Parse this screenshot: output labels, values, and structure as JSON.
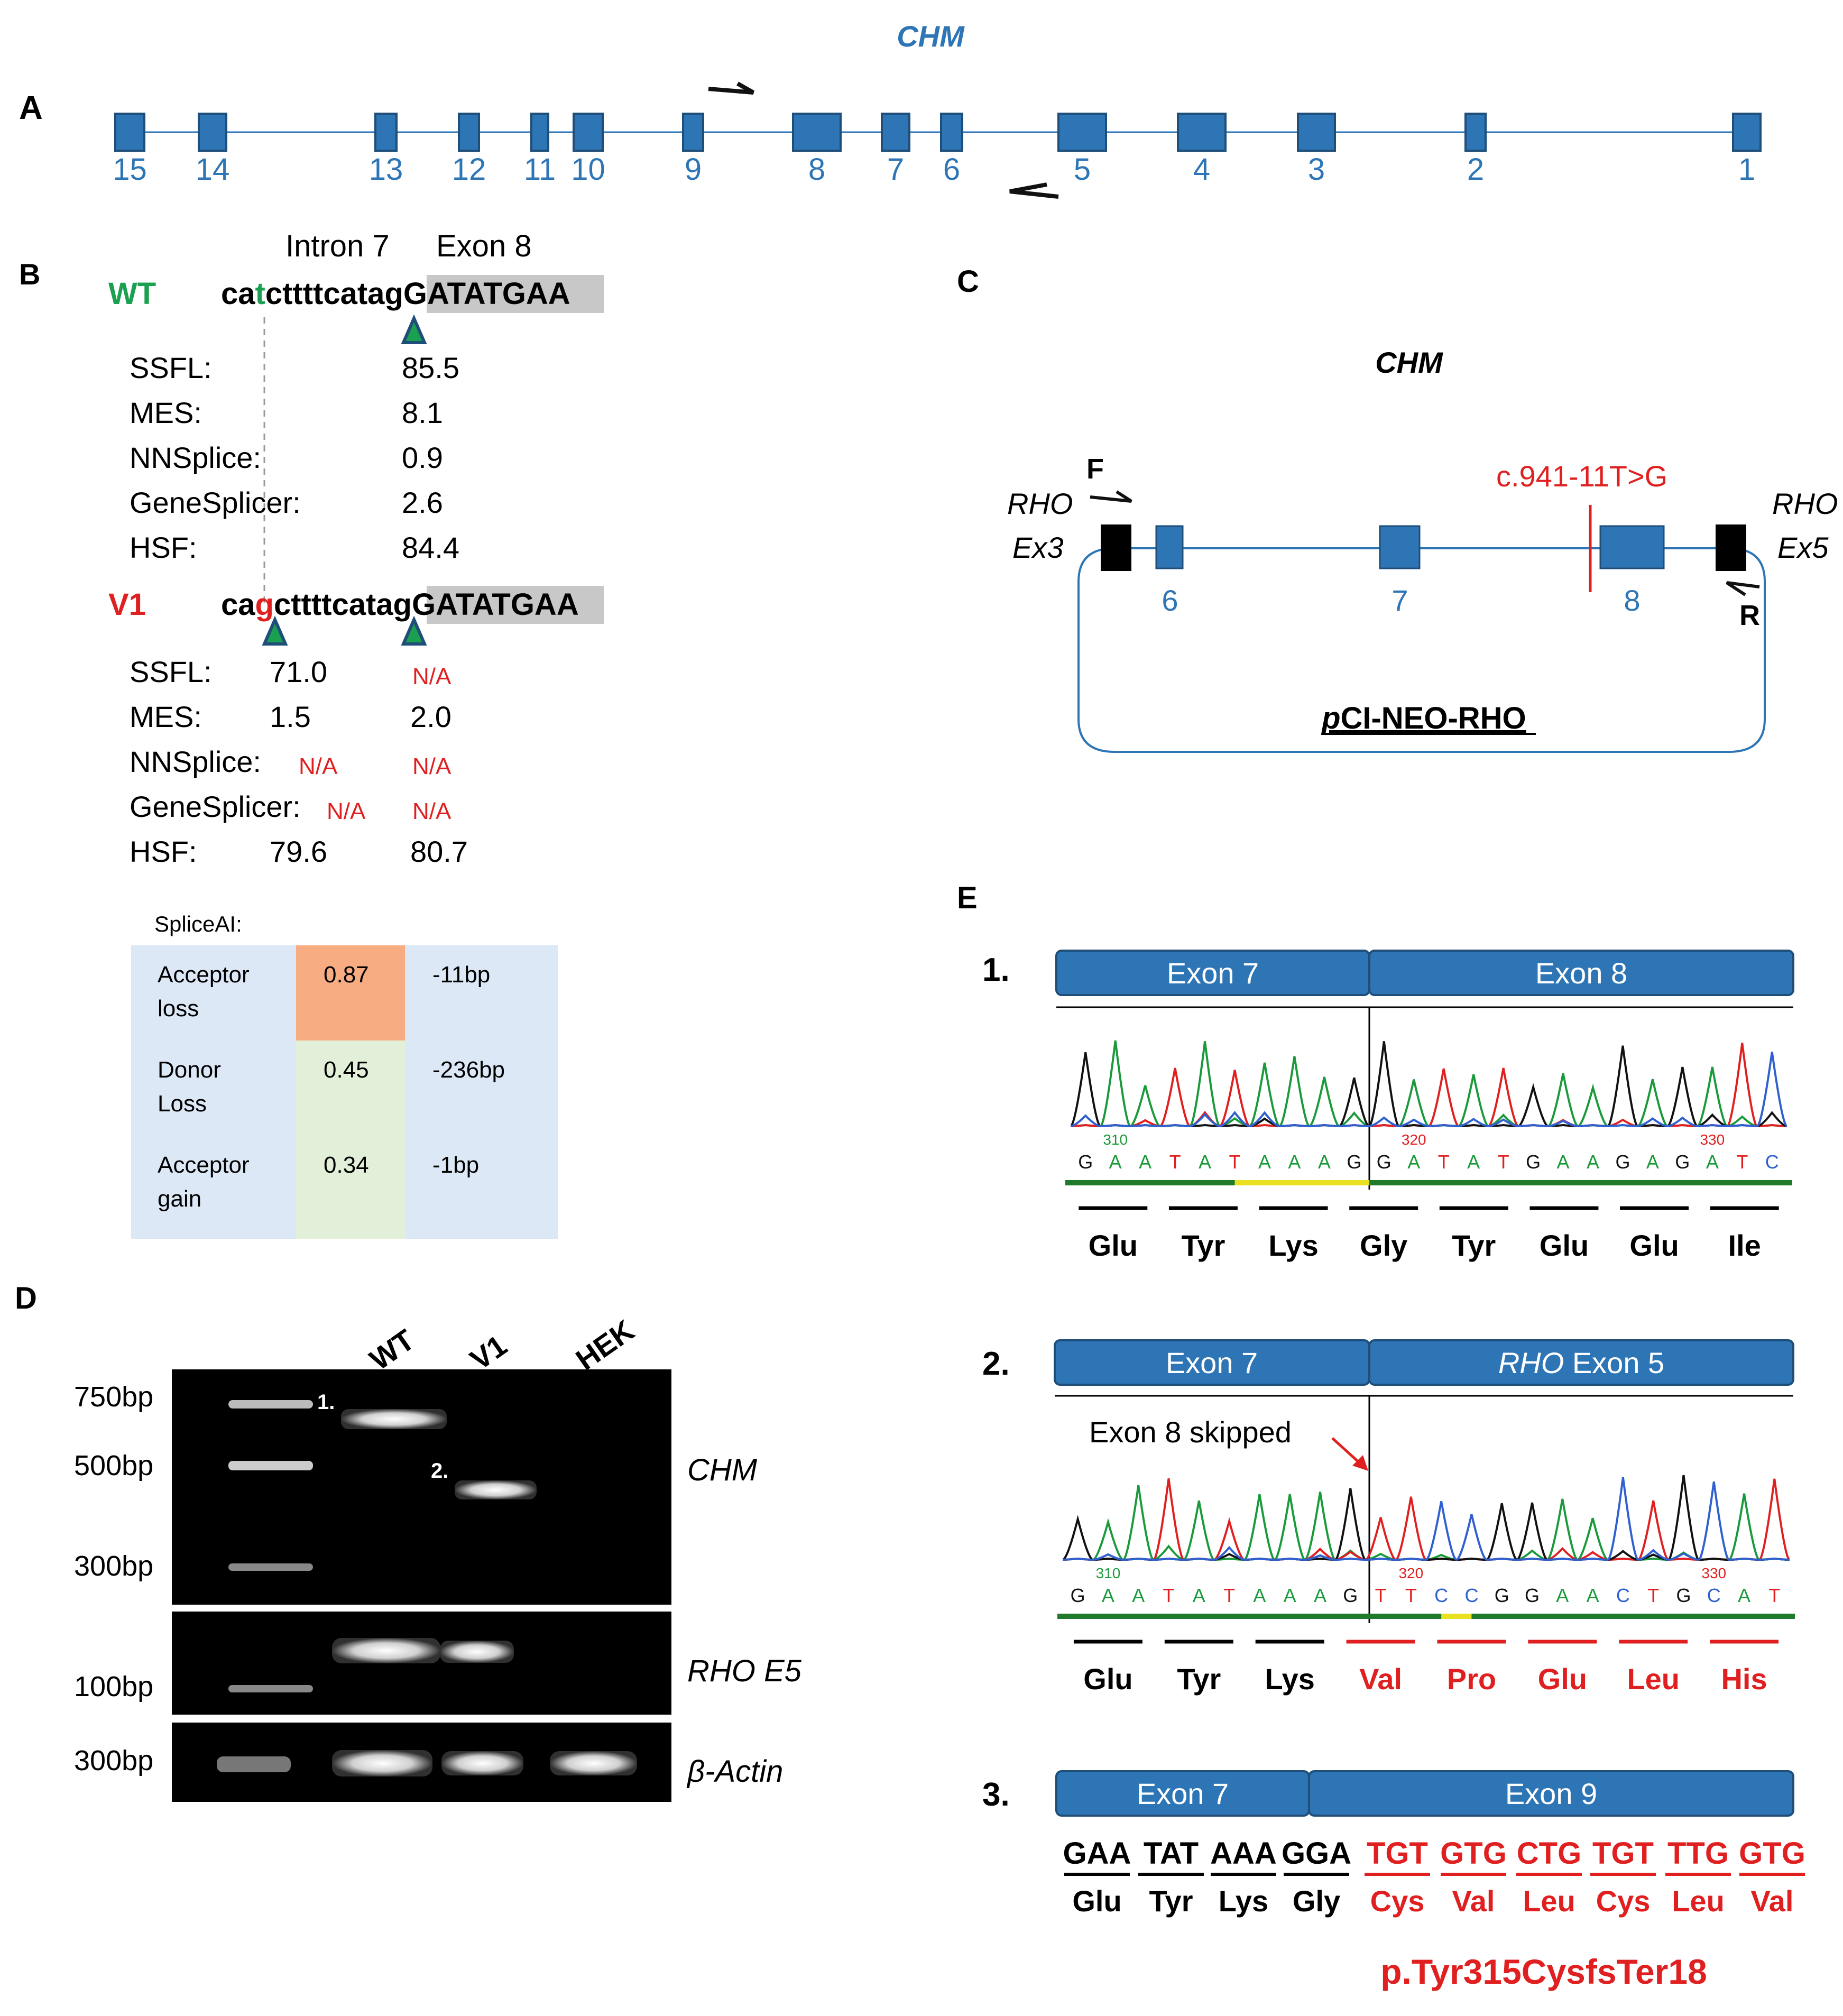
{
  "panels": {
    "A": "A",
    "B": "B",
    "C": "C",
    "D": "D",
    "E": "E"
  },
  "panelA": {
    "gene": "CHM",
    "exons": [
      "15",
      "14",
      "13",
      "12",
      "11",
      "10",
      "9",
      "8",
      "7",
      "6",
      "5",
      "4",
      "3",
      "2",
      "1"
    ]
  },
  "panelB": {
    "intron_label": "Intron 7",
    "exon_label": "Exon 8",
    "wt_label": "WT",
    "wt_seq_pre": "ca",
    "wt_seq_mut": "t",
    "wt_seq_post": "cttttcatag",
    "exon_seq": "GATATGAA",
    "v1_label": "V1",
    "v1_seq_pre": "ca",
    "v1_seq_mut": "g",
    "v1_seq_post": "cttttcatag",
    "wt_scores": [
      {
        "name": "SSFL:",
        "value": "85.5"
      },
      {
        "name": "MES:",
        "value": "8.1"
      },
      {
        "name": "NNSplice:",
        "value": "0.9"
      },
      {
        "name": "GeneSplicer:",
        "value": "2.6"
      },
      {
        "name": "HSF:",
        "value": "84.4"
      }
    ],
    "v1_scores": [
      {
        "name": "SSFL:",
        "v1": "71.0",
        "v2": "N/A"
      },
      {
        "name": "MES:",
        "v1": "1.5",
        "v2": "2.0"
      },
      {
        "name": "NNSplice:",
        "v1": "N/A",
        "v2": "N/A"
      },
      {
        "name": "GeneSplicer:",
        "v1": "N/A",
        "v2": "N/A"
      },
      {
        "name": "HSF:",
        "v1": "79.6",
        "v2": "80.7"
      }
    ],
    "spliceai_title": "SpliceAI:",
    "spliceai": [
      {
        "line1": "Acceptor",
        "line2": "loss",
        "score": "0.87",
        "pos": "-11bp"
      },
      {
        "line1": "Donor",
        "line2": "Loss",
        "score": "0.45",
        "pos": "-236bp"
      },
      {
        "line1": "Acceptor",
        "line2": "gain",
        "score": "0.34",
        "pos": "-1bp"
      }
    ]
  },
  "panelC": {
    "gene": "CHM",
    "mutation": "c.941-11T>G",
    "rho_left_1": "RHO",
    "rho_left_2": "Ex3",
    "rho_right_1": "RHO",
    "rho_right_2": "Ex5",
    "primer_f": "F",
    "primer_r": "R",
    "exons": [
      "6",
      "7",
      "8"
    ],
    "vector_pre": "p",
    "vector_post": "CI-NEO-RHO"
  },
  "panelD": {
    "lanes": [
      "WT",
      "V1",
      "HEK"
    ],
    "ladder_top": [
      "750bp",
      "500bp",
      "300bp"
    ],
    "ladder_mid": "100bp",
    "ladder_bot": "300bp",
    "band1": "1.",
    "band2": "2.",
    "gene_chm": "CHM",
    "gene_rho": "RHO E5",
    "gene_actin": "β-Actin"
  },
  "panelE": {
    "trace1": {
      "num": "1.",
      "left": "Exon 7",
      "right": "Exon 8",
      "ticks": [
        "310",
        "320",
        "330"
      ],
      "bases": [
        "G",
        "A",
        "A",
        "T",
        "A",
        "T",
        "A",
        "A",
        "A",
        "G",
        "G",
        "A",
        "T",
        "A",
        "T",
        "G",
        "A",
        "A",
        "G",
        "A",
        "G",
        "A",
        "T",
        "C"
      ],
      "aa": [
        "Glu",
        "Tyr",
        "Lys",
        "Gly",
        "Tyr",
        "Glu",
        "Glu",
        "Ile"
      ]
    },
    "trace2": {
      "num": "2.",
      "left": "Exon 7",
      "right_gene": "RHO",
      "right": " Exon 5",
      "skip_note": "Exon 8 skipped",
      "ticks": [
        "310",
        "320",
        "330"
      ],
      "bases": [
        "G",
        "A",
        "A",
        "T",
        "A",
        "T",
        "A",
        "A",
        "A",
        "G",
        "T",
        "T",
        "C",
        "C",
        "G",
        "G",
        "A",
        "A",
        "C",
        "T",
        "G",
        "C",
        "A",
        "T"
      ],
      "aa_normal": [
        "Glu",
        "Tyr",
        "Lys"
      ],
      "aa_changed": [
        "Val",
        "Pro",
        "Glu",
        "Leu",
        "His"
      ]
    },
    "trace3": {
      "num": "3.",
      "left": "Exon 7",
      "right": "Exon 9",
      "codons_normal": [
        "GAA",
        "TAT",
        "AAA",
        "GGA"
      ],
      "codons_changed": [
        "TGT",
        "GTG",
        "CTG",
        "TGT",
        "TTG",
        "GTG"
      ],
      "aa_normal": [
        "Glu",
        "Tyr",
        "Lys",
        "Gly"
      ],
      "aa_changed": [
        "Cys",
        "Val",
        "Leu",
        "Cys",
        "Leu",
        "Val"
      ],
      "protein": "p.Tyr315CysfsTer18"
    }
  },
  "colors": {
    "exon_blue": "#2e75b6",
    "mutation_red": "#e02020",
    "wt_green": "#1aa050",
    "spliceai_bg": "#dce8f5",
    "score_orange": "#f8ac82",
    "score_green": "#e2f0d9"
  }
}
